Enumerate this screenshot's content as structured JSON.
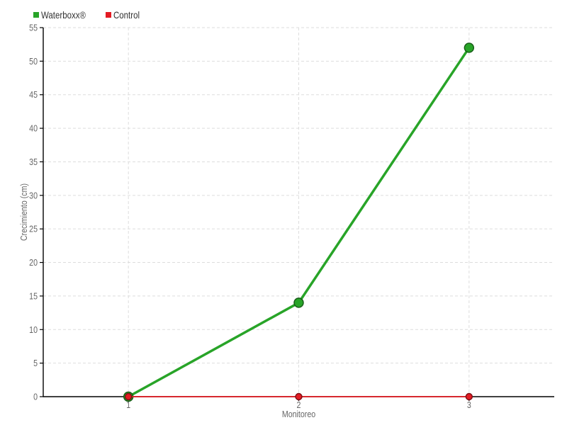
{
  "chart_data": {
    "type": "line",
    "title": "",
    "categories": [
      "1",
      "2",
      "3"
    ],
    "series": [
      {
        "name": "Waterboxx®",
        "values": [
          0,
          14,
          52
        ],
        "color": "#28a428",
        "line_width": 3.5,
        "marker_radius": 6.5
      },
      {
        "name": "Control",
        "values": [
          0,
          0,
          0
        ],
        "color": "#e31b23",
        "line_width": 1.8,
        "marker_radius": 4.5
      }
    ],
    "xlabel": "Monitoreo",
    "ylabel": "Crecimiento (cm)",
    "ylim": [
      0,
      55
    ],
    "y_tick_step": 5,
    "grid": "both",
    "grid_color": "#dddddd",
    "axis_color": "#000000",
    "tick_label_color": "#666666",
    "legend_position": "top-left",
    "legend_text_color": "#333333",
    "background_color": "#ffffff"
  }
}
